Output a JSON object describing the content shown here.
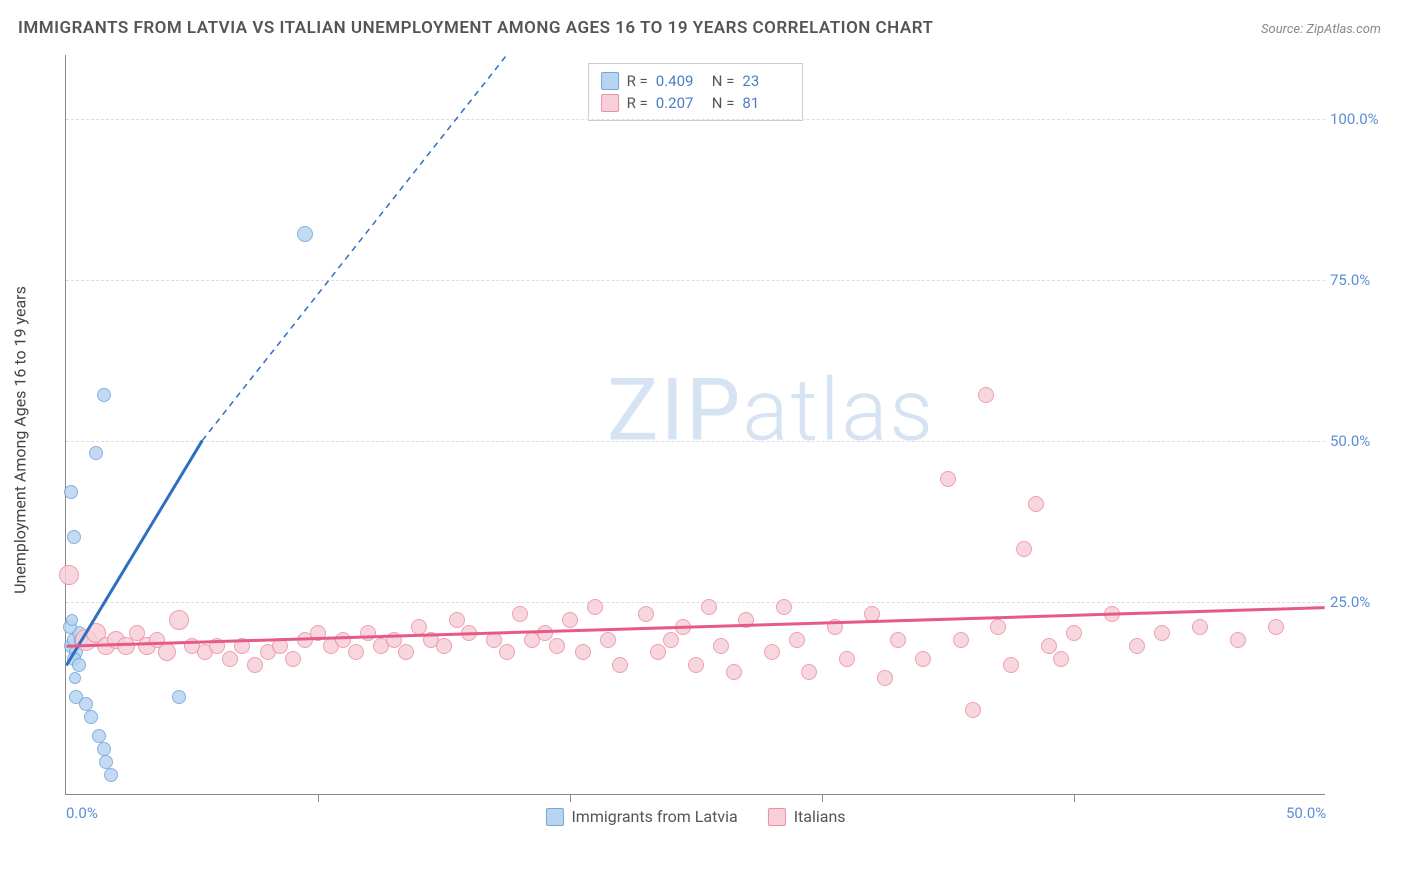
{
  "title": "IMMIGRANTS FROM LATVIA VS ITALIAN UNEMPLOYMENT AMONG AGES 16 TO 19 YEARS CORRELATION CHART",
  "source": "Source: ZipAtlas.com",
  "watermark_a": "ZIP",
  "watermark_b": "atlas",
  "chart": {
    "type": "scatter",
    "ylabel": "Unemployment Among Ages 16 to 19 years",
    "background_color": "#ffffff",
    "grid_color": "#dddddd",
    "axis_color": "#888888",
    "tick_label_color": "#5a8fd6",
    "xlim": [
      0,
      50
    ],
    "ylim": [
      -5,
      110
    ],
    "x_ticks": [
      {
        "pos": 0,
        "label": "0.0%"
      },
      {
        "pos": 50,
        "label": "50.0%"
      }
    ],
    "x_minor_ticks": [
      10,
      20,
      30,
      40
    ],
    "y_ticks": [
      {
        "pos": 25,
        "label": "25.0%"
      },
      {
        "pos": 50,
        "label": "50.0%"
      },
      {
        "pos": 75,
        "label": "75.0%"
      },
      {
        "pos": 100,
        "label": "100.0%"
      }
    ],
    "series": [
      {
        "name": "Immigrants from Latvia",
        "color_fill": "#b9d4f0",
        "color_stroke": "#6fa8e0",
        "trend_color": "#2f6fc2",
        "R": "0.409",
        "N": "23",
        "trend": {
          "x1": 0,
          "y1": 15,
          "x2": 5.4,
          "y2": 50,
          "dash_to_x": 17.5,
          "dash_to_y": 110
        },
        "points": [
          {
            "x": 0.2,
            "y": 18,
            "r": 7
          },
          {
            "x": 0.3,
            "y": 19,
            "r": 7
          },
          {
            "x": 0.4,
            "y": 17,
            "r": 7
          },
          {
            "x": 0.5,
            "y": 20,
            "r": 7
          },
          {
            "x": 0.6,
            "y": 19,
            "r": 7
          },
          {
            "x": 0.3,
            "y": 16,
            "r": 7
          },
          {
            "x": 0.2,
            "y": 42,
            "r": 7
          },
          {
            "x": 0.3,
            "y": 35,
            "r": 7
          },
          {
            "x": 1.2,
            "y": 48,
            "r": 7
          },
          {
            "x": 1.5,
            "y": 57,
            "r": 7
          },
          {
            "x": 9.5,
            "y": 82,
            "r": 8
          },
          {
            "x": 0.4,
            "y": 10,
            "r": 7
          },
          {
            "x": 0.8,
            "y": 9,
            "r": 7
          },
          {
            "x": 1.0,
            "y": 7,
            "r": 7
          },
          {
            "x": 1.3,
            "y": 4,
            "r": 7
          },
          {
            "x": 1.5,
            "y": 2,
            "r": 7
          },
          {
            "x": 1.6,
            "y": 0,
            "r": 7
          },
          {
            "x": 1.8,
            "y": -2,
            "r": 7
          },
          {
            "x": 4.5,
            "y": 10,
            "r": 7
          },
          {
            "x": 0.15,
            "y": 21,
            "r": 7
          },
          {
            "x": 0.5,
            "y": 15,
            "r": 7
          },
          {
            "x": 0.25,
            "y": 22,
            "r": 6
          },
          {
            "x": 0.35,
            "y": 13,
            "r": 6
          }
        ]
      },
      {
        "name": "Italians",
        "color_fill": "#f7cfd9",
        "color_stroke": "#ec8fa8",
        "trend_color": "#e65a8a",
        "R": "0.207",
        "N": "81",
        "trend": {
          "x1": 0,
          "y1": 18,
          "x2": 50,
          "y2": 24
        },
        "points": [
          {
            "x": 0.1,
            "y": 29,
            "r": 10
          },
          {
            "x": 0.8,
            "y": 19,
            "r": 11
          },
          {
            "x": 1.2,
            "y": 20,
            "r": 10
          },
          {
            "x": 1.6,
            "y": 18,
            "r": 9
          },
          {
            "x": 2.0,
            "y": 19,
            "r": 9
          },
          {
            "x": 2.4,
            "y": 18,
            "r": 9
          },
          {
            "x": 2.8,
            "y": 20,
            "r": 8
          },
          {
            "x": 3.2,
            "y": 18,
            "r": 9
          },
          {
            "x": 3.6,
            "y": 19,
            "r": 8
          },
          {
            "x": 4.0,
            "y": 17,
            "r": 9
          },
          {
            "x": 4.5,
            "y": 22,
            "r": 10
          },
          {
            "x": 5.0,
            "y": 18,
            "r": 8
          },
          {
            "x": 5.5,
            "y": 17,
            "r": 8
          },
          {
            "x": 6.0,
            "y": 18,
            "r": 8
          },
          {
            "x": 6.5,
            "y": 16,
            "r": 8
          },
          {
            "x": 7.0,
            "y": 18,
            "r": 8
          },
          {
            "x": 7.5,
            "y": 15,
            "r": 8
          },
          {
            "x": 8.0,
            "y": 17,
            "r": 8
          },
          {
            "x": 8.5,
            "y": 18,
            "r": 8
          },
          {
            "x": 9.0,
            "y": 16,
            "r": 8
          },
          {
            "x": 9.5,
            "y": 19,
            "r": 8
          },
          {
            "x": 10.0,
            "y": 20,
            "r": 8
          },
          {
            "x": 10.5,
            "y": 18,
            "r": 8
          },
          {
            "x": 11.0,
            "y": 19,
            "r": 8
          },
          {
            "x": 11.5,
            "y": 17,
            "r": 8
          },
          {
            "x": 12.0,
            "y": 20,
            "r": 8
          },
          {
            "x": 12.5,
            "y": 18,
            "r": 8
          },
          {
            "x": 13.0,
            "y": 19,
            "r": 8
          },
          {
            "x": 13.5,
            "y": 17,
            "r": 8
          },
          {
            "x": 14.0,
            "y": 21,
            "r": 8
          },
          {
            "x": 14.5,
            "y": 19,
            "r": 8
          },
          {
            "x": 15.0,
            "y": 18,
            "r": 8
          },
          {
            "x": 15.5,
            "y": 22,
            "r": 8
          },
          {
            "x": 16.0,
            "y": 20,
            "r": 8
          },
          {
            "x": 17.0,
            "y": 19,
            "r": 8
          },
          {
            "x": 17.5,
            "y": 17,
            "r": 8
          },
          {
            "x": 18.0,
            "y": 23,
            "r": 8
          },
          {
            "x": 18.5,
            "y": 19,
            "r": 8
          },
          {
            "x": 19.0,
            "y": 20,
            "r": 8
          },
          {
            "x": 19.5,
            "y": 18,
            "r": 8
          },
          {
            "x": 20.0,
            "y": 22,
            "r": 8
          },
          {
            "x": 20.5,
            "y": 17,
            "r": 8
          },
          {
            "x": 21.0,
            "y": 24,
            "r": 8
          },
          {
            "x": 21.5,
            "y": 19,
            "r": 8
          },
          {
            "x": 22.0,
            "y": 15,
            "r": 8
          },
          {
            "x": 23.0,
            "y": 23,
            "r": 8
          },
          {
            "x": 23.5,
            "y": 17,
            "r": 8
          },
          {
            "x": 24.0,
            "y": 19,
            "r": 8
          },
          {
            "x": 24.5,
            "y": 21,
            "r": 8
          },
          {
            "x": 25.0,
            "y": 15,
            "r": 8
          },
          {
            "x": 25.5,
            "y": 24,
            "r": 8
          },
          {
            "x": 26.0,
            "y": 18,
            "r": 8
          },
          {
            "x": 26.5,
            "y": 14,
            "r": 8
          },
          {
            "x": 27.0,
            "y": 22,
            "r": 8
          },
          {
            "x": 28.0,
            "y": 17,
            "r": 8
          },
          {
            "x": 28.5,
            "y": 24,
            "r": 8
          },
          {
            "x": 29.0,
            "y": 19,
            "r": 8
          },
          {
            "x": 29.5,
            "y": 14,
            "r": 8
          },
          {
            "x": 30.5,
            "y": 21,
            "r": 8
          },
          {
            "x": 31.0,
            "y": 16,
            "r": 8
          },
          {
            "x": 32.0,
            "y": 23,
            "r": 8
          },
          {
            "x": 32.5,
            "y": 13,
            "r": 8
          },
          {
            "x": 33.0,
            "y": 19,
            "r": 8
          },
          {
            "x": 34.0,
            "y": 16,
            "r": 8
          },
          {
            "x": 35.0,
            "y": 44,
            "r": 8
          },
          {
            "x": 35.5,
            "y": 19,
            "r": 8
          },
          {
            "x": 36.0,
            "y": 8,
            "r": 8
          },
          {
            "x": 36.5,
            "y": 57,
            "r": 8
          },
          {
            "x": 37.0,
            "y": 21,
            "r": 8
          },
          {
            "x": 37.5,
            "y": 15,
            "r": 8
          },
          {
            "x": 38.0,
            "y": 33,
            "r": 8
          },
          {
            "x": 38.5,
            "y": 40,
            "r": 8
          },
          {
            "x": 39.0,
            "y": 18,
            "r": 8
          },
          {
            "x": 39.5,
            "y": 16,
            "r": 8
          },
          {
            "x": 40.0,
            "y": 20,
            "r": 8
          },
          {
            "x": 41.5,
            "y": 23,
            "r": 8
          },
          {
            "x": 42.5,
            "y": 18,
            "r": 8
          },
          {
            "x": 43.5,
            "y": 20,
            "r": 8
          },
          {
            "x": 45.0,
            "y": 21,
            "r": 8
          },
          {
            "x": 46.5,
            "y": 19,
            "r": 8
          },
          {
            "x": 48.0,
            "y": 21,
            "r": 8
          }
        ]
      }
    ]
  },
  "bottom_legend": [
    {
      "label": "Immigrants from Latvia",
      "fill": "#b9d4f0",
      "stroke": "#6fa8e0"
    },
    {
      "label": "Italians",
      "fill": "#f7cfd9",
      "stroke": "#ec8fa8"
    }
  ],
  "stats_legend": {
    "rows": [
      {
        "fill": "#b9d4f0",
        "stroke": "#6fa8e0",
        "R_label": "R =",
        "R": "0.409",
        "N_label": "N =",
        "N": "23"
      },
      {
        "fill": "#f7cfd9",
        "stroke": "#ec8fa8",
        "R_label": "R =",
        "R": "0.207",
        "N_label": "N =",
        "N": "81"
      }
    ]
  }
}
